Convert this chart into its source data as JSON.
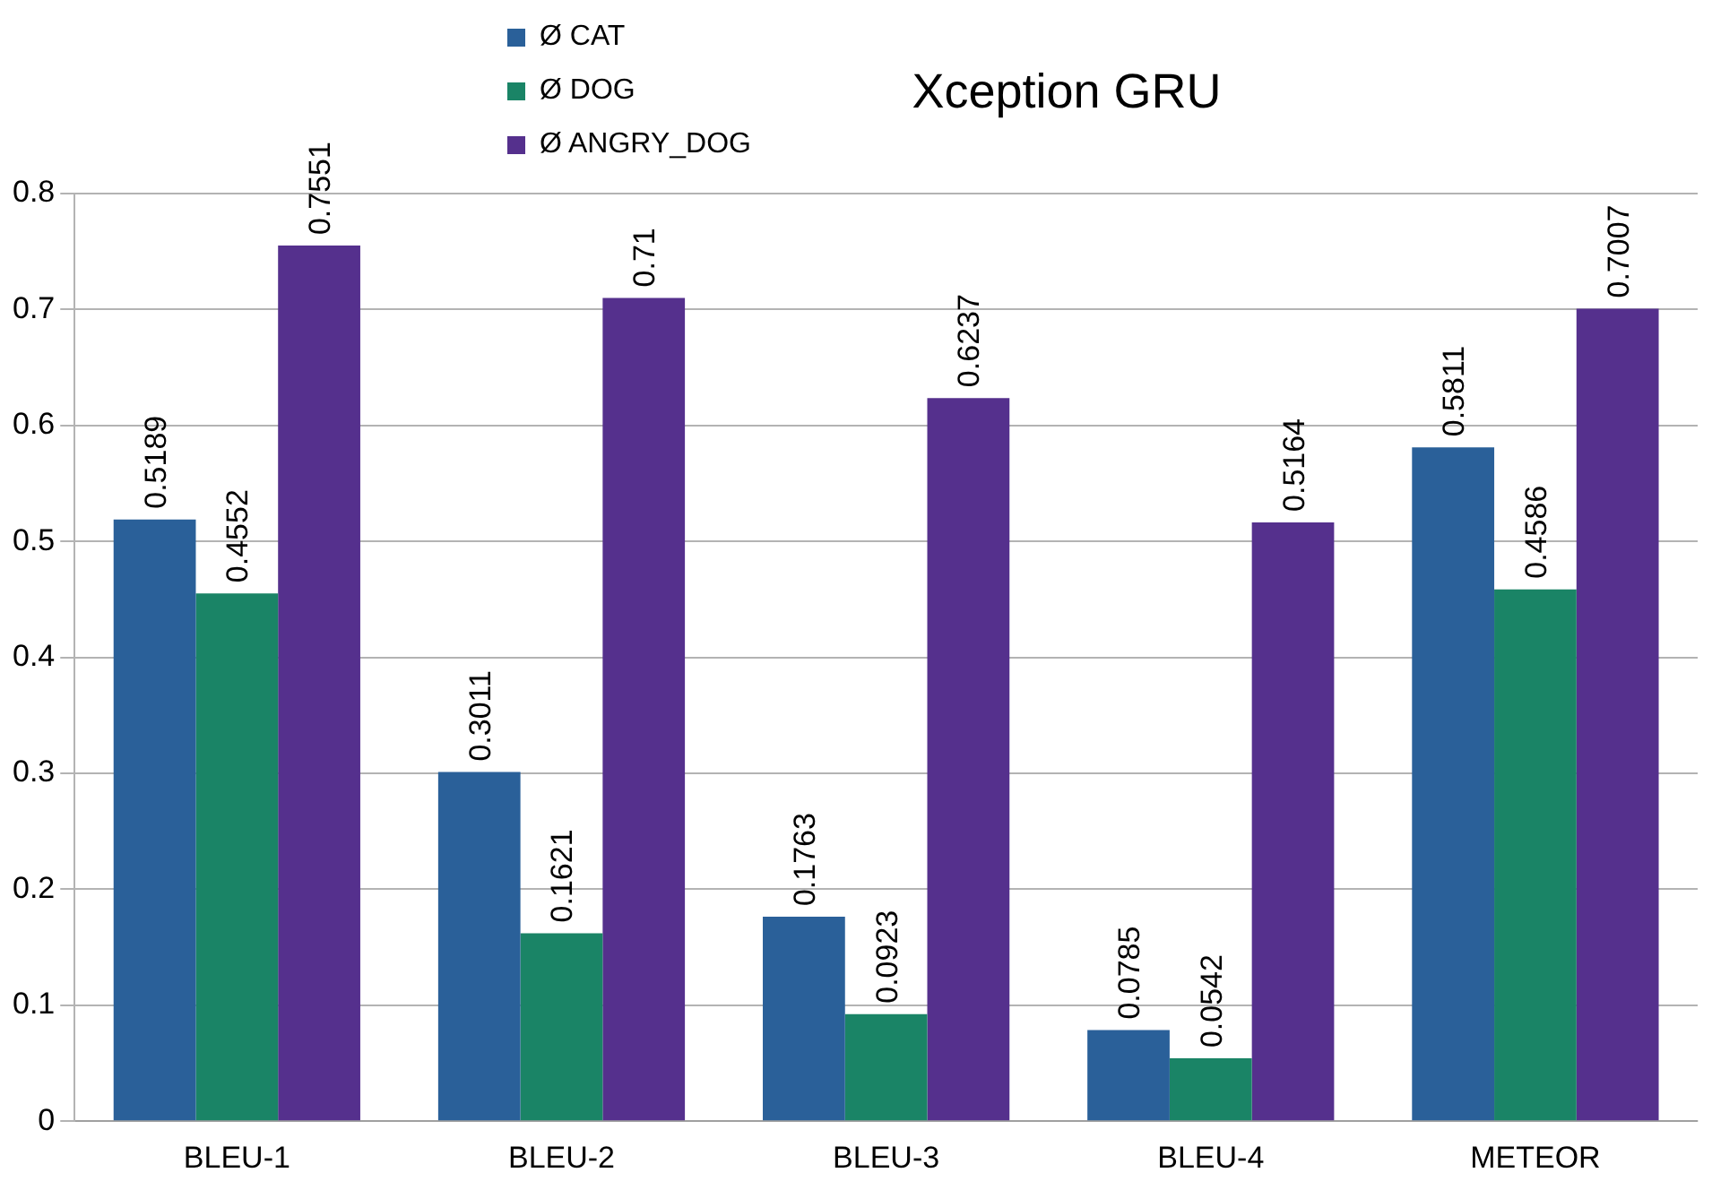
{
  "chart_data": {
    "type": "bar",
    "title": "Xception GRU",
    "categories": [
      "BLEU-1",
      "BLEU-2",
      "BLEU-3",
      "BLEU-4",
      "METEOR"
    ],
    "series": [
      {
        "name": "Ø CAT",
        "color": "#2a6099",
        "values": [
          0.5189,
          0.3011,
          0.1763,
          0.0785,
          0.5811
        ]
      },
      {
        "name": "Ø DOG",
        "color": "#1a8466",
        "values": [
          0.4552,
          0.1621,
          0.0923,
          0.0542,
          0.4586
        ]
      },
      {
        "name": "Ø ANGRY_DOG",
        "color": "#55308d",
        "values": [
          0.7551,
          0.71,
          0.6237,
          0.5164,
          0.7007
        ]
      }
    ],
    "ylim": [
      0,
      0.8
    ],
    "yticks": [
      0,
      0.1,
      0.2,
      0.3,
      0.4,
      0.5,
      0.6,
      0.7,
      0.8
    ],
    "grid": "y",
    "legend": "top",
    "data_labels": true
  }
}
